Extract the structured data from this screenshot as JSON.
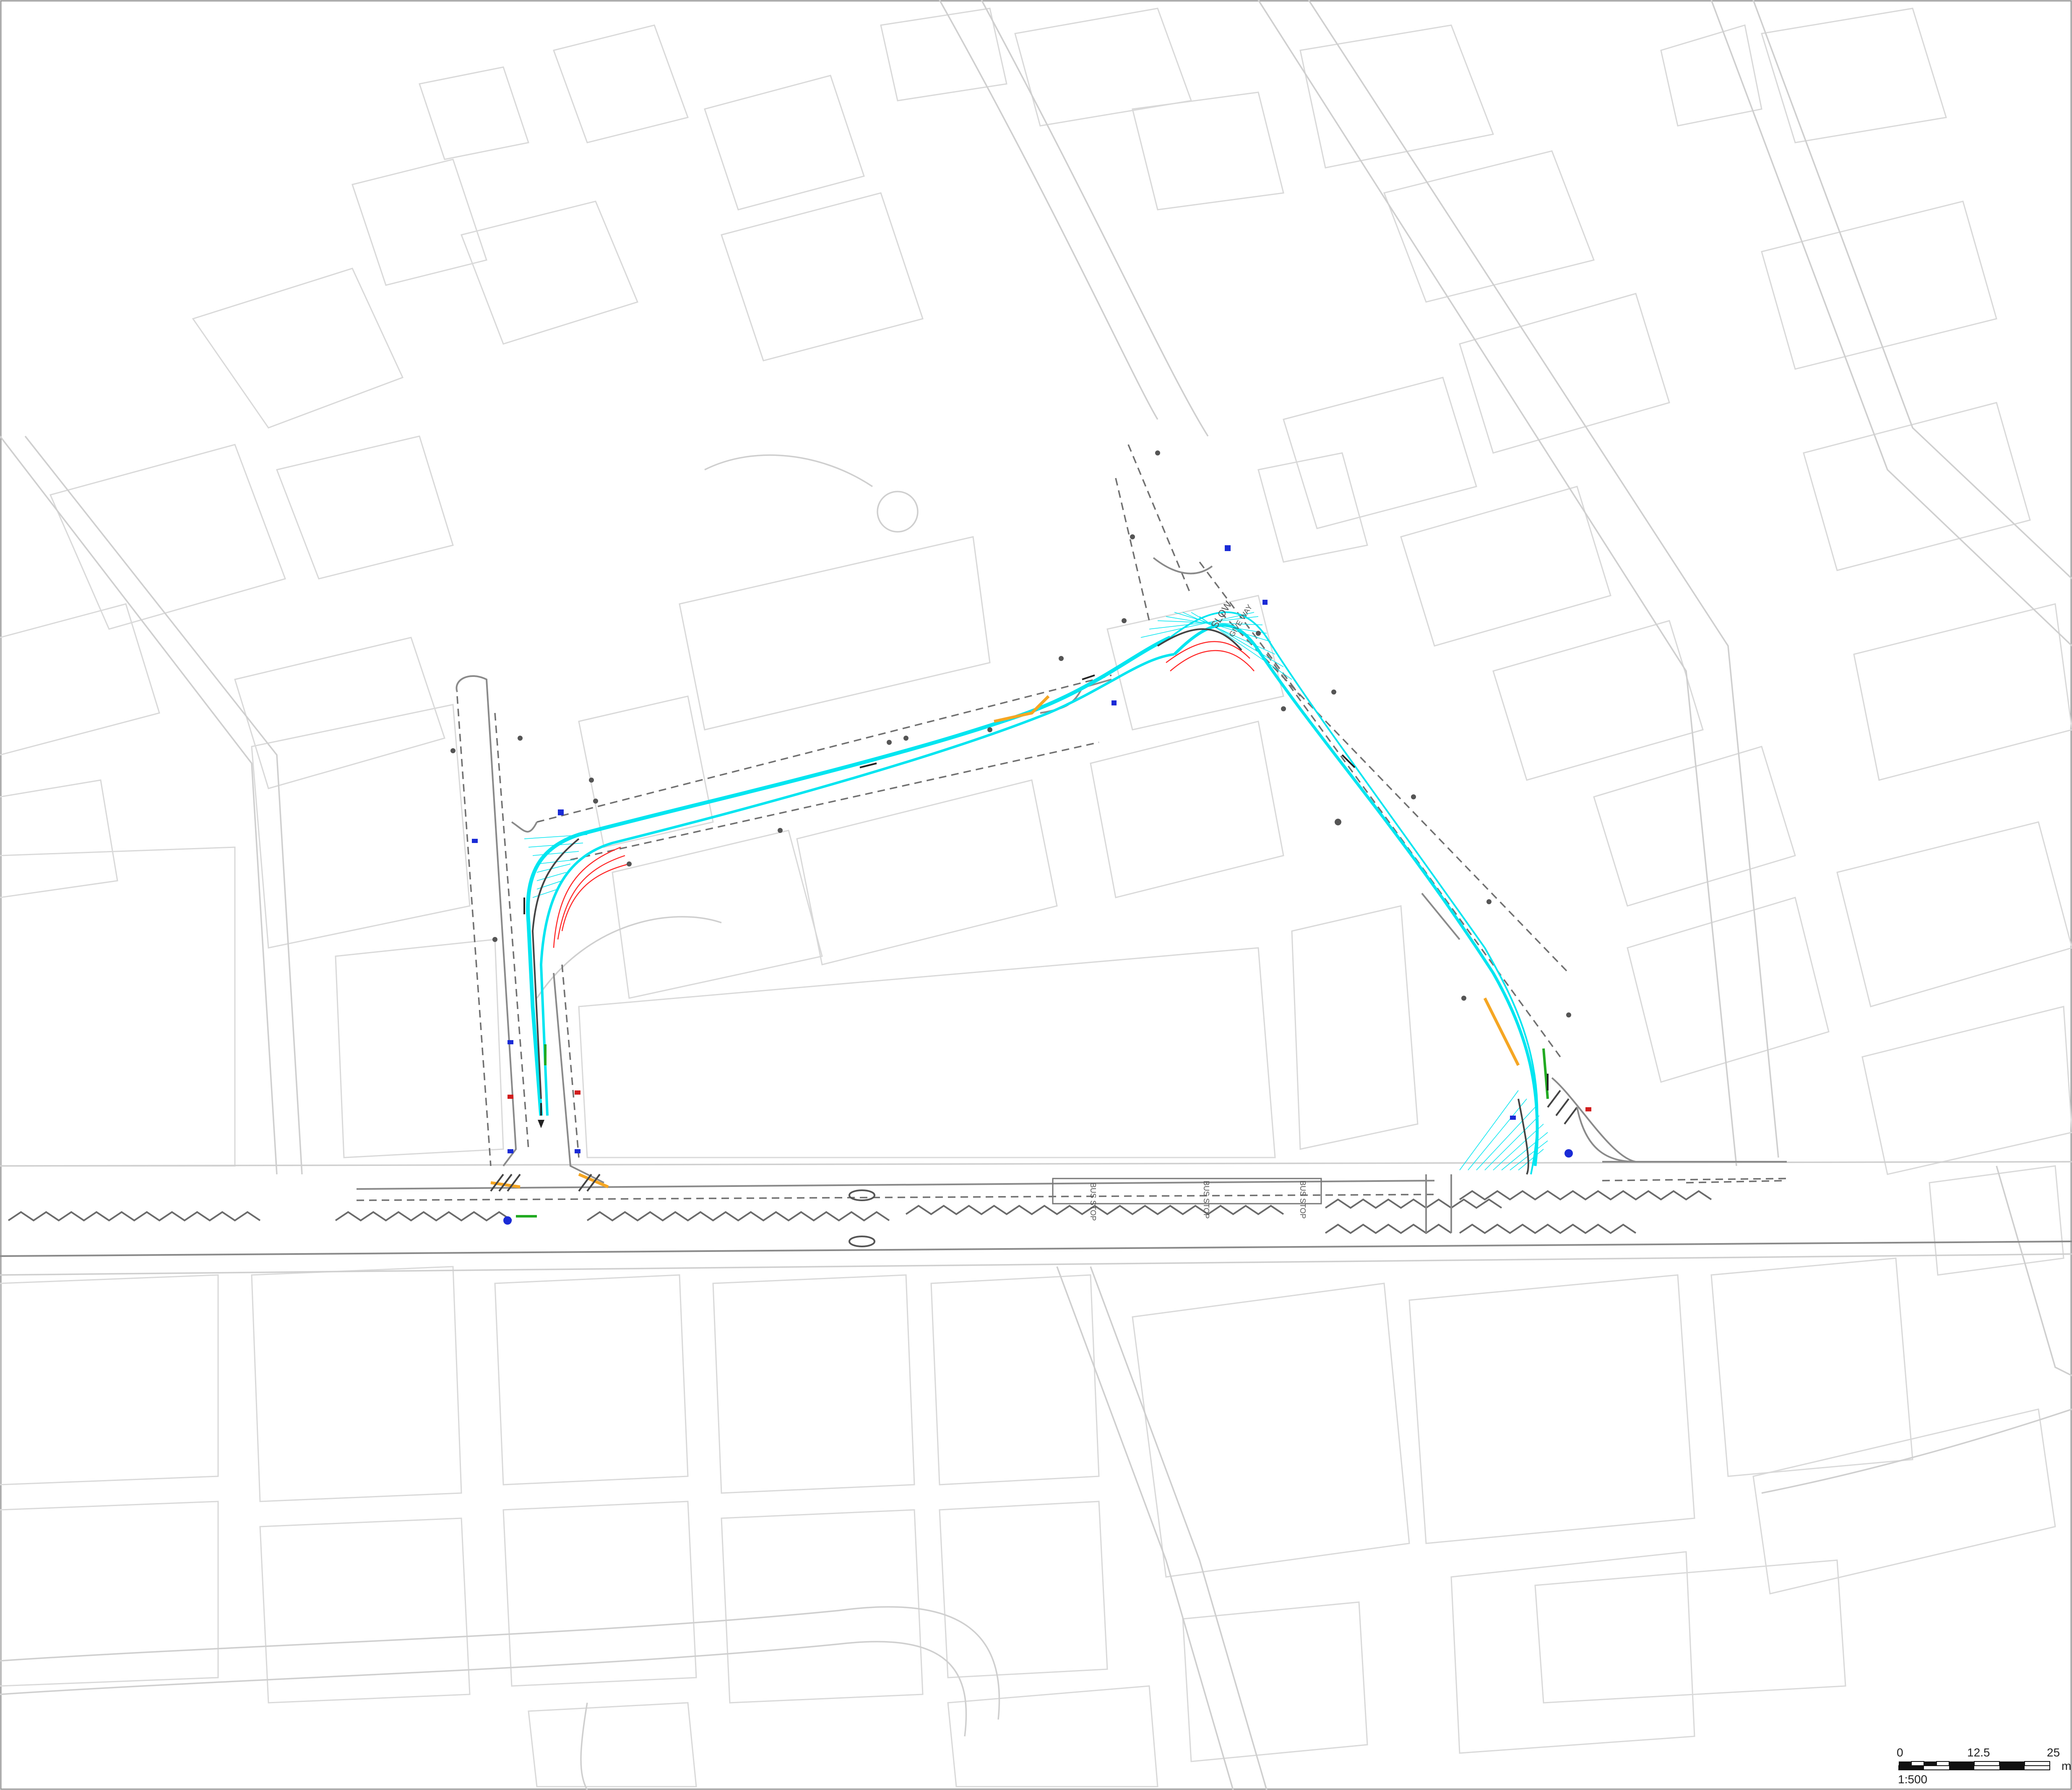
{
  "map": {
    "bus_stop_label": "BUS STOP",
    "markings": {
      "slow_label": "SLOW",
      "give_way_label": "GIVE WAY"
    },
    "scale_bar": {
      "ticks": [
        "0",
        "12.5",
        "25"
      ],
      "unit": "m",
      "ratio": "1:500"
    }
  },
  "colors": {
    "background": "#ffffff",
    "building_outline": "#d9d9d9",
    "kerb": "#8a8a8a",
    "swept_path": "#00e5f0",
    "swept_path_overhang": "#ff2a2a",
    "yellow_line": "#f5a623",
    "green_line": "#22aa22",
    "sign_blue": "#1a2bd6",
    "sign_red": "#d11d1d"
  }
}
